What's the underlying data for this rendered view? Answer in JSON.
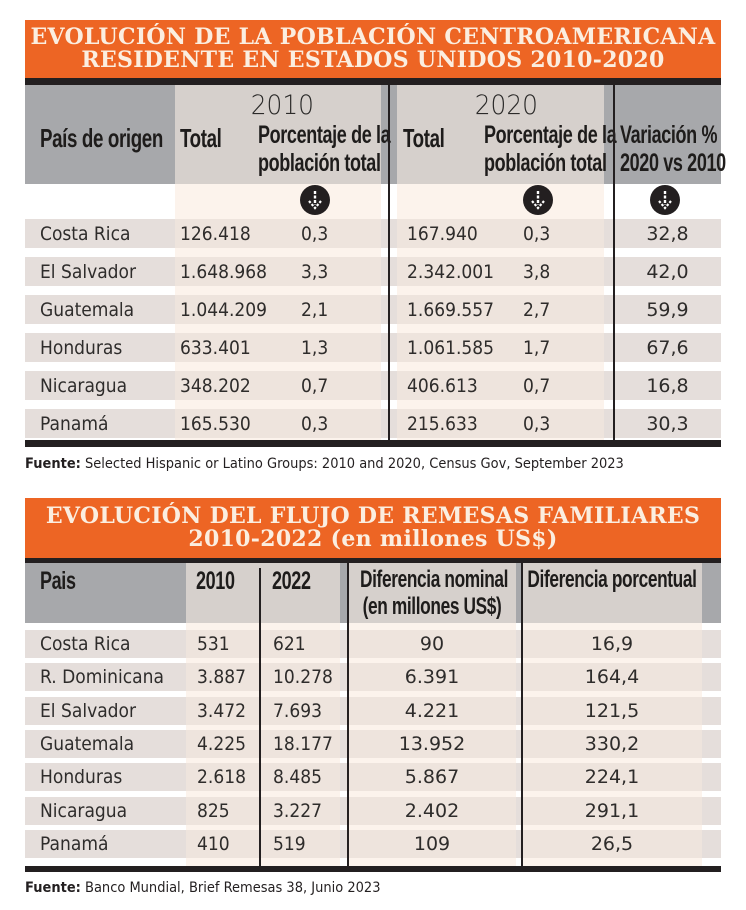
{
  "table1": {
    "title_line1": "EVOLUCIÓN DE LA POBLACIÓN CENTROAMERICANA",
    "title_line2": "RESIDENTE EN ESTADOS UNIDOS 2010-2020",
    "headers": {
      "country": "País de origen",
      "year_2010": "2010",
      "year_2020": "2020",
      "total_2010": "Total",
      "pct_2010_line1": "Porcentaje de la",
      "pct_2010_line2": "población total",
      "total_2020": "Total",
      "pct_2020_line1": "Porcentaje de la",
      "pct_2020_line2": "población total",
      "variation_line1": "Variación %",
      "variation_line2": "2020 vs 2010"
    },
    "sort_icon": "sort-down-arrow-icon",
    "rows": [
      {
        "country": "Costa Rica",
        "total_2010": "126.418",
        "pct_2010": "0,3",
        "total_2020": "167.940",
        "pct_2020": "0,3",
        "variation": "32,8"
      },
      {
        "country": "El Salvador",
        "total_2010": "1.648.968",
        "pct_2010": "3,3",
        "total_2020": "2.342.001",
        "pct_2020": "3,8",
        "variation": "42,0"
      },
      {
        "country": "Guatemala",
        "total_2010": "1.044.209",
        "pct_2010": "2,1",
        "total_2020": "1.669.557",
        "pct_2020": "2,7",
        "variation": "59,9"
      },
      {
        "country": "Honduras",
        "total_2010": "633.401",
        "pct_2010": "1,3",
        "total_2020": "1.061.585",
        "pct_2020": "1,7",
        "variation": "67,6"
      },
      {
        "country": "Nicaragua",
        "total_2010": "348.202",
        "pct_2010": "0,7",
        "total_2020": "406.613",
        "pct_2020": "0,7",
        "variation": "16,8"
      },
      {
        "country": "Panamá",
        "total_2010": "165.530",
        "pct_2010": "0,3",
        "total_2020": "215.633",
        "pct_2020": "0,3",
        "variation": "30,3"
      }
    ],
    "source_label": "Fuente:",
    "source_text": " Selected Hispanic or Latino Groups: 2010 and 2020, Census Gov, September 2023"
  },
  "table2": {
    "title_line1": "EVOLUCIÓN DEL FLUJO DE REMESAS FAMILIARES",
    "title_line2": "2010-2022 (en millones US$)",
    "headers": {
      "country": "Pais",
      "y2010": "2010",
      "y2022": "2022",
      "nominal_line1": "Diferencia nominal",
      "nominal_line2": "(en millones US$)",
      "percent": "Diferencia porcentual"
    },
    "rows": [
      {
        "country": "Costa Rica",
        "y2010": "531",
        "y2022": "621",
        "nominal": "90",
        "percent": "16,9"
      },
      {
        "country": "R. Dominicana",
        "y2010": "3.887",
        "y2022": "10.278",
        "nominal": "6.391",
        "percent": "164,4"
      },
      {
        "country": "El Salvador",
        "y2010": "3.472",
        "y2022": "7.693",
        "nominal": "4.221",
        "percent": "121,5"
      },
      {
        "country": "Guatemala",
        "y2010": "4.225",
        "y2022": "18.177",
        "nominal": "13.952",
        "percent": "330,2"
      },
      {
        "country": "Honduras",
        "y2010": "2.618",
        "y2022": "8.485",
        "nominal": "5.867",
        "percent": "224,1"
      },
      {
        "country": "Nicaragua",
        "y2010": "825",
        "y2022": "3.227",
        "nominal": "2.402",
        "percent": "291,1"
      },
      {
        "country": "Panamá",
        "y2010": "410",
        "y2022": "519",
        "nominal": "109",
        "percent": "26,5"
      }
    ],
    "source_label": "Fuente:",
    "source_text": " Banco Mundial, Brief Remesas 38, Junio 2023"
  },
  "colors": {
    "title_orange": "#ed6524",
    "title_text": "#fbeee0",
    "header_gray": "#a7a8ab",
    "header_light": "#d6d0cc",
    "row_band": "#e5dedb",
    "column_tint": "#fcf3ec",
    "black": "#231f20"
  }
}
